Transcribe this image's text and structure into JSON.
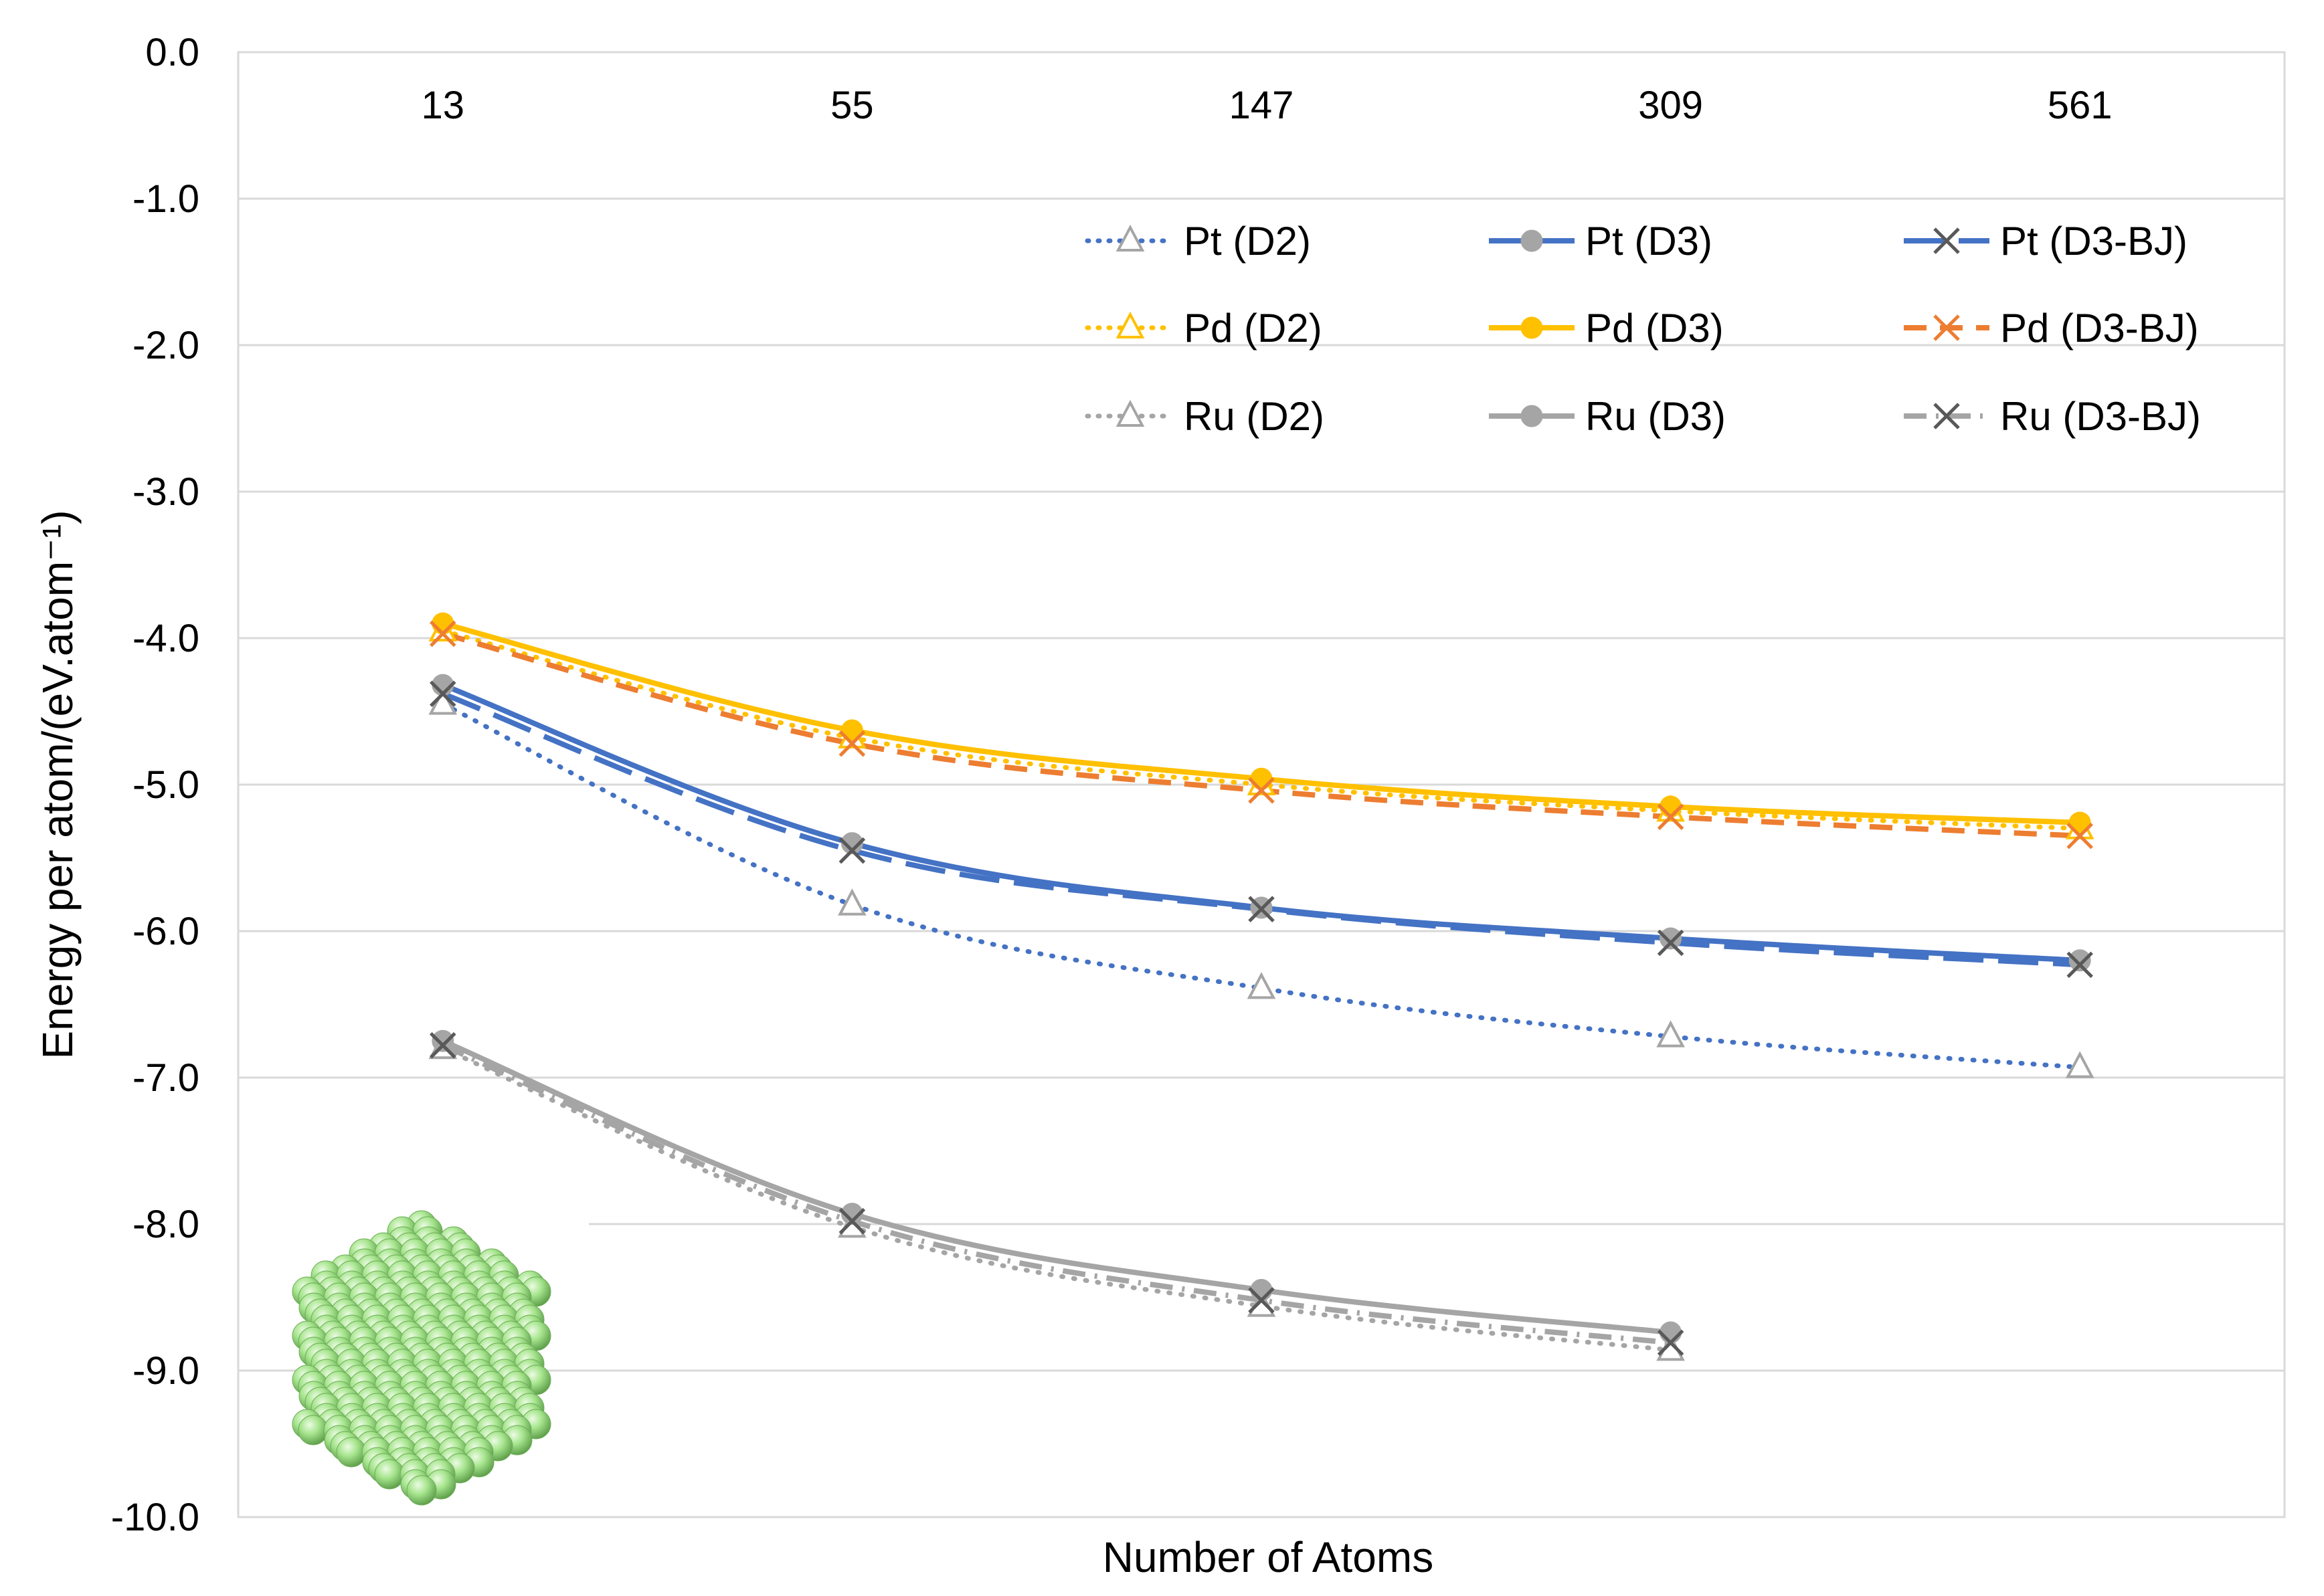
{
  "chart_data": {
    "type": "line",
    "title": "",
    "xlabel": "Number of Atoms",
    "ylabel": "Energy per atom/(eV.atom⁻¹)",
    "categories": [
      "13",
      "55",
      "147",
      "309",
      "561"
    ],
    "ylim": [
      -10.0,
      0.0
    ],
    "yticks": [
      0.0,
      -1.0,
      -2.0,
      -3.0,
      -4.0,
      -5.0,
      -6.0,
      -7.0,
      -8.0,
      -9.0,
      -10.0
    ],
    "ytick_labels": [
      "0.0",
      "-1.0",
      "-2.0",
      "-3.0",
      "-4.0",
      "-5.0",
      "-6.0",
      "-7.0",
      "-8.0",
      "-9.0",
      "-10.0"
    ],
    "grid": true,
    "category_labels_position": "top",
    "legend_position": "top-right",
    "series": [
      {
        "name": "Pt (D2)",
        "values": [
          -4.45,
          -5.82,
          -6.39,
          -6.72,
          -6.93
        ],
        "color": "#4472C4",
        "dash": "dotted",
        "marker": "triangle-open"
      },
      {
        "name": "Pt (D3)",
        "values": [
          -4.32,
          -5.4,
          -5.84,
          -6.05,
          -6.2
        ],
        "color": "#4472C4",
        "dash": "solid",
        "marker": "circle-grey"
      },
      {
        "name": "Pt (D3-BJ)",
        "values": [
          -4.38,
          -5.45,
          -5.85,
          -6.08,
          -6.23
        ],
        "color": "#4472C4",
        "dash": "long-dash",
        "marker": "x"
      },
      {
        "name": "Pd (D2)",
        "values": [
          -3.95,
          -4.68,
          -5.0,
          -5.18,
          -5.3
        ],
        "color": "#FFC000",
        "dash": "dotted",
        "marker": "triangle-yellow"
      },
      {
        "name": "Pd (D3)",
        "values": [
          -3.9,
          -4.63,
          -4.96,
          -5.15,
          -5.26
        ],
        "color": "#FFC000",
        "dash": "solid",
        "marker": "circle-yellow"
      },
      {
        "name": "Pd (D3-BJ)",
        "values": [
          -3.97,
          -4.72,
          -5.04,
          -5.22,
          -5.35
        ],
        "color": "#ED7D31",
        "dash": "dash",
        "marker": "x-orange"
      },
      {
        "name": "Ru (D2)",
        "values": [
          -6.8,
          -8.02,
          -8.56,
          -8.86,
          null
        ],
        "color": "#A5A5A5",
        "dash": "dotted",
        "marker": "triangle-open"
      },
      {
        "name": "Ru (D3)",
        "values": [
          -6.75,
          -7.93,
          -8.45,
          -8.74,
          null
        ],
        "color": "#A5A5A5",
        "dash": "solid",
        "marker": "circle-grey"
      },
      {
        "name": "Ru (D3-BJ)",
        "values": [
          -6.78,
          -7.98,
          -8.52,
          -8.81,
          null
        ],
        "color": "#A5A5A5",
        "dash": "dash-dot",
        "marker": "x"
      }
    ],
    "annotations": [
      "icosahedral nanoparticle illustration (green spheres), bottom-left"
    ]
  }
}
